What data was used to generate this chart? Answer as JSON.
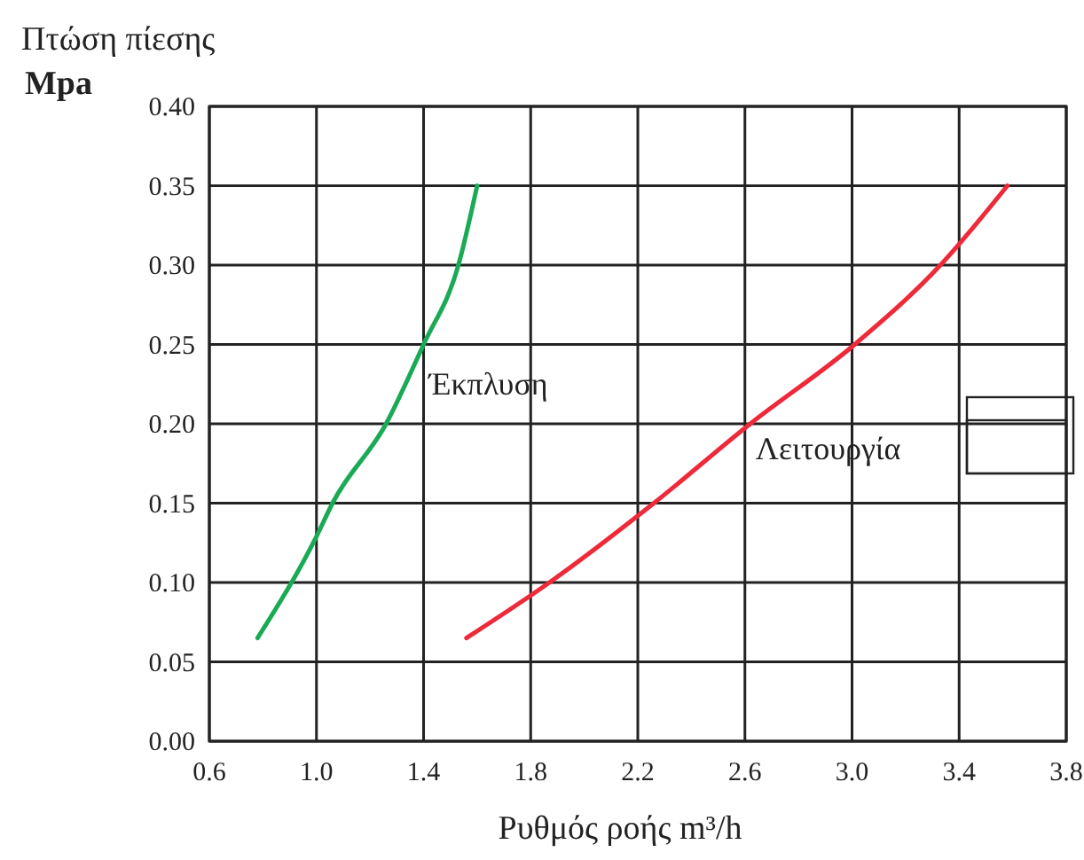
{
  "chart_data": {
    "type": "line",
    "xlabel": "Ρυθμός ροής m³/h",
    "ylabel": "Πτώση πίεσης\nMpa",
    "xlim": [
      0.6,
      3.8
    ],
    "ylim": [
      0,
      0.4
    ],
    "xticks": [
      {
        "value": 0.6,
        "label": "0.6"
      },
      {
        "value": 1.0,
        "label": "1.0"
      },
      {
        "value": 1.4,
        "label": "1.4"
      },
      {
        "value": 1.8,
        "label": "1.8"
      },
      {
        "value": 2.2,
        "label": "2.2"
      },
      {
        "value": 2.6,
        "label": "2.6"
      },
      {
        "value": 3.0,
        "label": "3.0"
      },
      {
        "value": 3.4,
        "label": "3.4"
      },
      {
        "value": 3.8,
        "label": "3.8"
      }
    ],
    "yticks": [
      {
        "value": 0,
        "label": "0.00"
      },
      {
        "value": 0.05,
        "label": "0.05"
      },
      {
        "value": 0.1,
        "label": "0.10"
      },
      {
        "value": 0.15,
        "label": "0.15"
      },
      {
        "value": 0.2,
        "label": "0.20"
      },
      {
        "value": 0.25,
        "label": "0.25"
      },
      {
        "value": 0.3,
        "label": "0.30"
      },
      {
        "value": 0.35,
        "label": "0.35"
      },
      {
        "value": 0.4,
        "label": "0.40"
      }
    ],
    "grid": true,
    "marker": "none",
    "line_style": "solid",
    "series": [
      {
        "name": "Έκπλυση",
        "color": "#1aaa55",
        "x": [
          0.78,
          1.0,
          1.06,
          1.26,
          1.4,
          1.53,
          1.6
        ],
        "values": [
          0.065,
          0.129,
          0.15,
          0.2,
          0.25,
          0.3,
          0.35
        ]
      },
      {
        "name": "Λειτουργία",
        "color": "#ee2a3a",
        "x": [
          1.56,
          1.87,
          2.26,
          2.62,
          3.01,
          3.33,
          3.58
        ],
        "values": [
          0.065,
          0.1,
          0.15,
          0.2,
          0.25,
          0.3,
          0.35
        ]
      }
    ]
  }
}
